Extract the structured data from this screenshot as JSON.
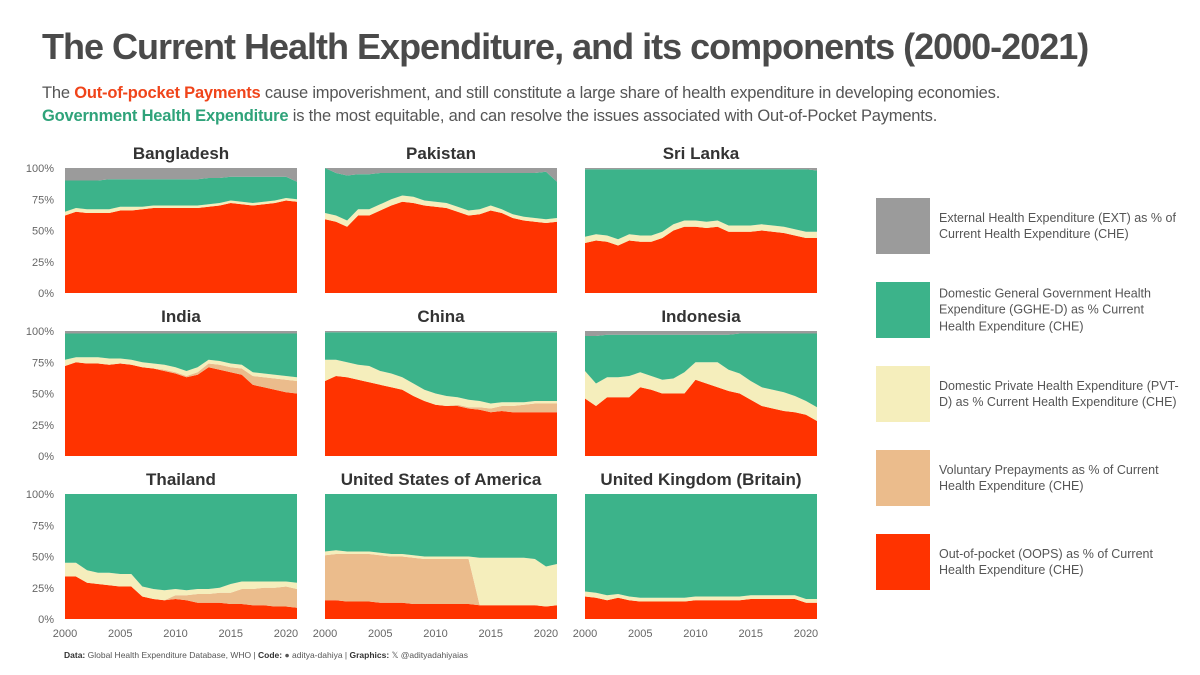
{
  "title": "The Current Health Expenditure, and its components (2000-2021)",
  "subtitle": {
    "line1_prefix": "The ",
    "line1_highlight": "Out-of-pocket Payments",
    "line1_suffix": " cause impoverishment, and still constitute a large share of health expenditure in developing economies.",
    "line2_highlight": "Government Health Expenditure",
    "line2_suffix": " is the most equitable, and can resolve the issues associated with Out-of-Pocket Payments."
  },
  "colors": {
    "ext": "#9b9b9b",
    "gghe": "#3cb38a",
    "pvt": "#f5eebc",
    "vol": "#ebbc8c",
    "oops": "#ff3300"
  },
  "legend": [
    {
      "key": "ext",
      "label": "External Health Expenditure (EXT) as % of Current Health Expenditure (CHE)"
    },
    {
      "key": "gghe",
      "label": "Domestic General Government Health Expenditure (GGHE-D) as % Current Health Expenditure (CHE)"
    },
    {
      "key": "pvt",
      "label": "Domestic Private Health Expenditure (PVT-D) as % Current Health Expenditure (CHE)"
    },
    {
      "key": "vol",
      "label": "Voluntary Prepayments as % of Current Health Expenditure (CHE)"
    },
    {
      "key": "oops",
      "label": "Out-of-pocket (OOPS) as % of Current Health Expenditure (CHE)"
    }
  ],
  "caption": {
    "data_label": "Data:",
    "data_text": " Global Health Expenditure Database, WHO | ",
    "code_label": "Code:",
    "code_text": " aditya-dahiya | ",
    "graphics_label": "Graphics:",
    "graphics_text": " @adityadahiyaias"
  },
  "chart_data": {
    "type": "area",
    "stacking": "stacked, bottom to top: oops, vol, pvt, gghe, ext",
    "x": [
      2000,
      2001,
      2002,
      2003,
      2004,
      2005,
      2006,
      2007,
      2008,
      2009,
      2010,
      2011,
      2012,
      2013,
      2014,
      2015,
      2016,
      2017,
      2018,
      2019,
      2020,
      2021
    ],
    "xlim": [
      2000,
      2021
    ],
    "ylim": [
      0,
      100
    ],
    "xticks": [
      2000,
      2005,
      2010,
      2015,
      2020
    ],
    "yticks": [
      "0%",
      "25%",
      "50%",
      "75%",
      "100%"
    ],
    "panels": [
      {
        "name": "Bangladesh",
        "oops": [
          62,
          65,
          64,
          64,
          64,
          66,
          66,
          67,
          68,
          68,
          68,
          68,
          68,
          69,
          70,
          72,
          71,
          70,
          71,
          72,
          74,
          73
        ],
        "vol": [
          0,
          0,
          0,
          0,
          0,
          0,
          0,
          0,
          0,
          0,
          0,
          0,
          0,
          0,
          0,
          0,
          0,
          0,
          0,
          0,
          0,
          0
        ],
        "pvt": [
          3,
          3,
          3,
          3,
          3,
          3,
          3,
          2,
          2,
          2,
          2,
          2,
          2,
          2,
          2,
          2,
          2,
          2,
          2,
          2,
          2,
          2
        ],
        "gghe": [
          25,
          22,
          23,
          23,
          24,
          22,
          22,
          22,
          21,
          21,
          21,
          21,
          21,
          21,
          20,
          19,
          20,
          21,
          20,
          19,
          17,
          14
        ],
        "ext": [
          10,
          10,
          10,
          10,
          9,
          9,
          9,
          9,
          9,
          9,
          9,
          9,
          9,
          8,
          8,
          7,
          7,
          7,
          7,
          7,
          7,
          11
        ]
      },
      {
        "name": "Pakistan",
        "oops": [
          59,
          57,
          53,
          62,
          62,
          66,
          70,
          73,
          72,
          70,
          69,
          68,
          65,
          62,
          63,
          66,
          64,
          60,
          58,
          57,
          56,
          57
        ],
        "vol": [
          0,
          0,
          0,
          0,
          0,
          0,
          0,
          0,
          0,
          0,
          0,
          0,
          0,
          0,
          0,
          0,
          0,
          0,
          0,
          0,
          0,
          0
        ],
        "pvt": [
          5,
          5,
          5,
          5,
          5,
          5,
          5,
          5,
          5,
          4,
          4,
          4,
          4,
          4,
          4,
          4,
          3,
          3,
          3,
          3,
          3,
          3
        ],
        "gghe": [
          36,
          34,
          36,
          28,
          28,
          25,
          21,
          18,
          19,
          22,
          23,
          24,
          27,
          30,
          29,
          26,
          29,
          33,
          35,
          36,
          38,
          29
        ],
        "ext": [
          0,
          4,
          6,
          5,
          5,
          4,
          4,
          4,
          4,
          4,
          4,
          4,
          4,
          4,
          4,
          4,
          4,
          4,
          4,
          4,
          3,
          11
        ]
      },
      {
        "name": "Sri Lanka",
        "oops": [
          40,
          42,
          41,
          38,
          42,
          41,
          41,
          44,
          50,
          53,
          53,
          52,
          53,
          49,
          49,
          49,
          50,
          49,
          48,
          46,
          44,
          44
        ],
        "vol": [
          0,
          0,
          0,
          0,
          0,
          0,
          0,
          0,
          0,
          0,
          0,
          0,
          0,
          0,
          0,
          0,
          0,
          0,
          0,
          0,
          0,
          0
        ],
        "pvt": [
          5,
          5,
          5,
          5,
          5,
          5,
          5,
          5,
          5,
          5,
          5,
          5,
          5,
          5,
          5,
          5,
          5,
          5,
          5,
          5,
          5,
          5
        ],
        "gghe": [
          54,
          52,
          53,
          56,
          52,
          53,
          53,
          50,
          44,
          41,
          41,
          42,
          41,
          45,
          45,
          45,
          44,
          45,
          46,
          48,
          50,
          49
        ],
        "ext": [
          1,
          1,
          1,
          1,
          1,
          1,
          1,
          1,
          1,
          1,
          1,
          1,
          1,
          1,
          1,
          1,
          1,
          1,
          1,
          1,
          1,
          2
        ]
      },
      {
        "name": "India",
        "oops": [
          72,
          75,
          74,
          74,
          73,
          74,
          73,
          71,
          70,
          68,
          66,
          63,
          65,
          71,
          69,
          67,
          65,
          57,
          55,
          53,
          51,
          50
        ],
        "vol": [
          0,
          0,
          0,
          0,
          0,
          0,
          0,
          0,
          0,
          1,
          1,
          1,
          2,
          3,
          4,
          4,
          5,
          7,
          8,
          9,
          10,
          10
        ],
        "pvt": [
          5,
          4,
          5,
          5,
          5,
          4,
          4,
          4,
          4,
          4,
          4,
          4,
          4,
          3,
          3,
          3,
          3,
          3,
          3,
          3,
          3,
          3
        ],
        "gghe": [
          21,
          19,
          19,
          19,
          20,
          20,
          21,
          23,
          24,
          25,
          27,
          30,
          27,
          21,
          22,
          24,
          25,
          31,
          32,
          33,
          34,
          35
        ],
        "ext": [
          2,
          2,
          2,
          2,
          2,
          2,
          2,
          2,
          2,
          2,
          2,
          2,
          2,
          2,
          2,
          2,
          2,
          2,
          2,
          2,
          2,
          2
        ]
      },
      {
        "name": "China",
        "oops": [
          60,
          64,
          63,
          61,
          59,
          57,
          55,
          53,
          48,
          44,
          41,
          40,
          40,
          38,
          37,
          35,
          36,
          35,
          35,
          35,
          35,
          35
        ],
        "vol": [
          0,
          0,
          0,
          0,
          0,
          0,
          0,
          0,
          0,
          0,
          0,
          0,
          1,
          1,
          2,
          3,
          4,
          5,
          6,
          7,
          7,
          7
        ],
        "pvt": [
          17,
          13,
          12,
          12,
          13,
          11,
          11,
          10,
          10,
          9,
          9,
          8,
          6,
          6,
          5,
          4,
          3,
          3,
          2,
          2,
          2,
          2
        ],
        "gghe": [
          22,
          22,
          24,
          26,
          27,
          31,
          33,
          36,
          41,
          46,
          49,
          51,
          52,
          54,
          55,
          57,
          56,
          56,
          56,
          55,
          55,
          55
        ],
        "ext": [
          1,
          1,
          1,
          1,
          1,
          1,
          1,
          1,
          1,
          1,
          1,
          1,
          1,
          1,
          1,
          1,
          1,
          1,
          1,
          1,
          1,
          1
        ]
      },
      {
        "name": "Indonesia",
        "oops": [
          46,
          40,
          47,
          47,
          47,
          55,
          53,
          50,
          50,
          50,
          61,
          58,
          55,
          52,
          50,
          45,
          40,
          38,
          36,
          35,
          33,
          28
        ],
        "vol": [
          0,
          0,
          0,
          0,
          0,
          0,
          0,
          0,
          0,
          0,
          0,
          0,
          0,
          0,
          0,
          0,
          0,
          0,
          0,
          0,
          0,
          0
        ],
        "pvt": [
          22,
          18,
          16,
          16,
          17,
          12,
          11,
          11,
          12,
          17,
          14,
          17,
          20,
          17,
          16,
          15,
          15,
          15,
          15,
          13,
          11,
          11
        ],
        "gghe": [
          28,
          38,
          34,
          34,
          33,
          30,
          33,
          36,
          35,
          30,
          22,
          22,
          22,
          28,
          32,
          38,
          43,
          45,
          47,
          50,
          54,
          59
        ],
        "ext": [
          4,
          4,
          3,
          3,
          3,
          3,
          3,
          3,
          3,
          3,
          3,
          3,
          3,
          3,
          2,
          2,
          2,
          2,
          2,
          2,
          2,
          2
        ]
      },
      {
        "name": "Thailand",
        "oops": [
          34,
          34,
          29,
          28,
          27,
          26,
          26,
          18,
          16,
          15,
          16,
          15,
          13,
          13,
          13,
          12,
          12,
          11,
          11,
          10,
          10,
          9
        ],
        "vol": [
          0,
          0,
          0,
          0,
          0,
          0,
          0,
          0,
          0,
          0,
          3,
          4,
          7,
          7,
          8,
          9,
          12,
          13,
          14,
          15,
          16,
          15
        ],
        "pvt": [
          11,
          11,
          10,
          9,
          10,
          10,
          10,
          8,
          8,
          8,
          5,
          4,
          4,
          4,
          4,
          7,
          6,
          6,
          5,
          5,
          4,
          5
        ],
        "gghe": [
          55,
          55,
          61,
          63,
          63,
          64,
          64,
          74,
          76,
          77,
          76,
          77,
          76,
          76,
          75,
          72,
          70,
          70,
          70,
          70,
          70,
          71
        ],
        "ext": [
          0,
          0,
          0,
          0,
          0,
          0,
          0,
          0,
          0,
          0,
          0,
          0,
          0,
          0,
          0,
          0,
          0,
          0,
          0,
          0,
          0,
          0
        ]
      },
      {
        "name": "United States of America",
        "oops": [
          15,
          15,
          14,
          14,
          14,
          13,
          13,
          13,
          12,
          12,
          12,
          12,
          12,
          12,
          11,
          11,
          11,
          11,
          11,
          11,
          10,
          11
        ],
        "vol": [
          36,
          37,
          38,
          38,
          38,
          38,
          37,
          37,
          37,
          36,
          36,
          36,
          36,
          36,
          0,
          0,
          0,
          0,
          0,
          0,
          0,
          0
        ],
        "pvt": [
          3,
          3,
          2,
          2,
          2,
          2,
          2,
          2,
          2,
          2,
          2,
          2,
          2,
          2,
          38,
          38,
          38,
          38,
          38,
          37,
          32,
          33
        ],
        "gghe": [
          46,
          45,
          46,
          46,
          46,
          47,
          48,
          48,
          49,
          50,
          50,
          50,
          50,
          50,
          51,
          51,
          51,
          51,
          51,
          52,
          58,
          56
        ],
        "ext": [
          0,
          0,
          0,
          0,
          0,
          0,
          0,
          0,
          0,
          0,
          0,
          0,
          0,
          0,
          0,
          0,
          0,
          0,
          0,
          0,
          0,
          0
        ]
      },
      {
        "name": "United Kingdom (Britain)",
        "oops": [
          18,
          17,
          15,
          17,
          15,
          14,
          14,
          14,
          14,
          14,
          15,
          15,
          15,
          15,
          15,
          16,
          16,
          16,
          16,
          16,
          13,
          13
        ],
        "vol": [
          0,
          0,
          0,
          0,
          0,
          0,
          0,
          0,
          0,
          0,
          0,
          0,
          0,
          0,
          0,
          0,
          0,
          0,
          0,
          0,
          0,
          0
        ],
        "pvt": [
          4,
          4,
          4,
          3,
          3,
          3,
          3,
          3,
          3,
          3,
          3,
          3,
          3,
          3,
          3,
          3,
          3,
          3,
          3,
          3,
          3,
          3
        ],
        "gghe": [
          78,
          79,
          81,
          80,
          82,
          83,
          83,
          83,
          83,
          83,
          82,
          82,
          82,
          82,
          82,
          81,
          81,
          81,
          81,
          81,
          84,
          84
        ],
        "ext": [
          0,
          0,
          0,
          0,
          0,
          0,
          0,
          0,
          0,
          0,
          0,
          0,
          0,
          0,
          0,
          0,
          0,
          0,
          0,
          0,
          0,
          0
        ]
      }
    ]
  }
}
